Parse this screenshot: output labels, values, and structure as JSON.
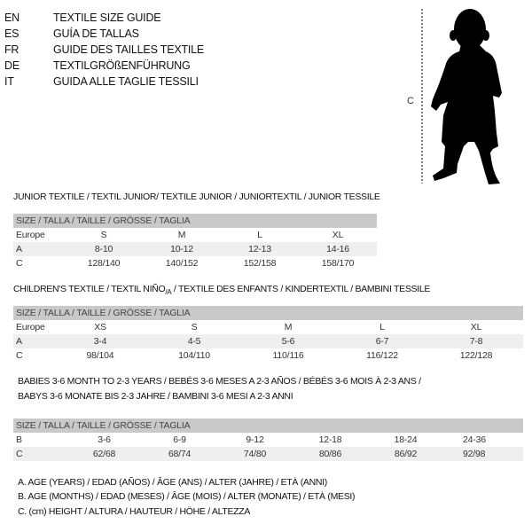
{
  "languages": [
    {
      "code": "EN",
      "title": "TEXTILE SIZE GUIDE"
    },
    {
      "code": "ES",
      "title": "GUÍA DE TALLAS"
    },
    {
      "code": "FR",
      "title": "GUIDE DES TAILLES TEXTILE"
    },
    {
      "code": "DE",
      "title": "TEXTILGRÖßENFÜHRUNG"
    },
    {
      "code": "IT",
      "title": "GUIDA ALLE TAGLIE TESSILI"
    }
  ],
  "figure": {
    "measure_label": "C",
    "icon": "child-silhouette"
  },
  "size_header": "SIZE / TALLA / TAILLE / GRÖSSE / TAGLIA",
  "junior": {
    "title": "JUNIOR TEXTILE / TEXTIL JUNIOR/ TEXTILE JUNIOR / JUNIORTEXTIL / JUNIOR TESSILE",
    "rows": [
      {
        "label": "Europe",
        "values": [
          "S",
          "M",
          "L",
          "XL"
        ]
      },
      {
        "label": "A",
        "values": [
          "8-10",
          "10-12",
          "12-13",
          "14-16"
        ]
      },
      {
        "label": "C",
        "values": [
          "128/140",
          "140/152",
          "152/158",
          "158/170"
        ]
      }
    ]
  },
  "children": {
    "title_pre": "CHILDREN'S TEXTILE / TEXTIL NIÑO",
    "title_sub": "/A",
    "title_post": " / TEXTILE DES ENFANTS / KINDERTEXTIL / BAMBINI TESSILE",
    "rows": [
      {
        "label": "Europe",
        "values": [
          "XS",
          "S",
          "M",
          "L",
          "XL"
        ]
      },
      {
        "label": "A",
        "values": [
          "3-4",
          "4-5",
          "5-6",
          "6-7",
          "7-8"
        ]
      },
      {
        "label": "C",
        "values": [
          "98/104",
          "104/110",
          "110/116",
          "116/122",
          "122/128"
        ]
      }
    ]
  },
  "babies": {
    "title_line1": "BABIES 3-6 MONTH TO 2-3 YEARS / BEBÉS 3-6 MESES A 2-3 AÑOS / BÉBÉS 3-6 MOIS À 2-3 ANS /",
    "title_line2": "BABYS 3-6 MONATE BIS 2-3 JAHRE / BAMBINI 3-6 MESI A 2-3 ANNI",
    "rows": [
      {
        "label": "B",
        "values": [
          "3-6",
          "6-9",
          "9-12",
          "12-18",
          "18-24",
          "24-36"
        ]
      },
      {
        "label": "C",
        "values": [
          "62/68",
          "68/74",
          "74/80",
          "80/86",
          "86/92",
          "92/98"
        ]
      }
    ]
  },
  "notes": [
    "A. AGE (YEARS) / EDAD (AÑOS) / ÂGE (ANS) / ALTER (JAHRE) / ETÀ (ANNI)",
    "B. AGE (MONTHS) / EDAD (MESES) / ÂGE (MOIS) / ALTER (MONATE) / ETÀ (MESI)",
    "C. (cm) HEIGHT / ALTURA / HAUTEUR / HÖHE / ALTEZZA"
  ]
}
